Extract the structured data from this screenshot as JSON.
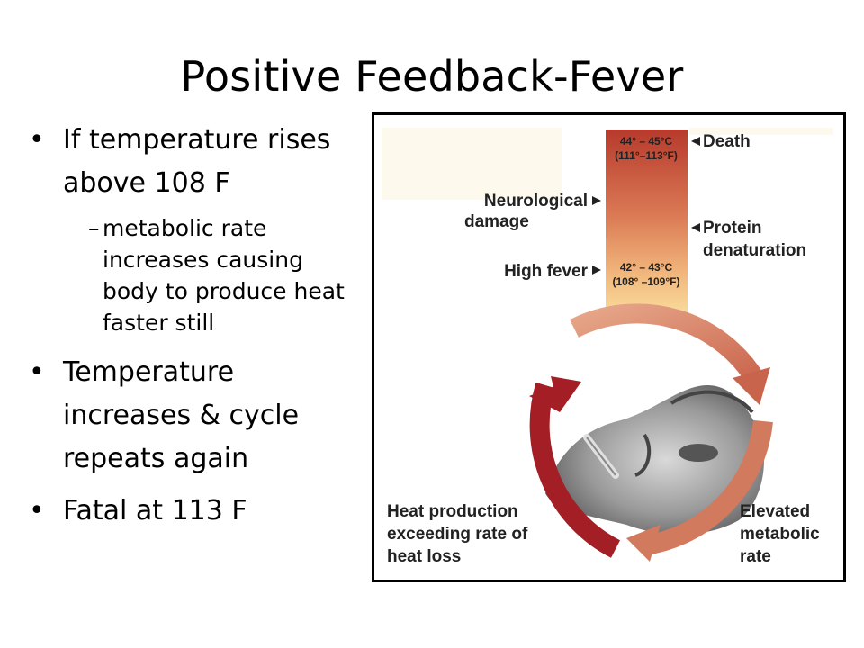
{
  "slide": {
    "title": "Positive Feedback-Fever",
    "bullets": {
      "b1": "If temperature rises above 108 F",
      "b1_sub": "metabolic rate increases causing body to produce heat faster still",
      "b2": "Temperature increases & cycle repeats again",
      "b3": "Fatal at 113 F"
    }
  },
  "figure": {
    "thermo_top_line1": "44° – 45°C",
    "thermo_top_line2": "(111°–113°F)",
    "thermo_mid_line1": "42° – 43°C",
    "thermo_mid_line2": "(108° –109°F)",
    "death": "Death",
    "neuro_line1": "Neurological",
    "neuro_line2": "damage",
    "protein_line1": "Protein",
    "protein_line2": "denaturation",
    "high_fever": "High fever",
    "heat_line1": "Heat production",
    "heat_line2": "exceeding rate of",
    "heat_line3": "heat loss",
    "elevated_line1": "Elevated",
    "elevated_line2": "metabolic",
    "elevated_line3": "rate",
    "colors": {
      "dark_red": "#a31e25",
      "salmon": "#d9876d",
      "yellow": "#f9e5a3"
    }
  }
}
